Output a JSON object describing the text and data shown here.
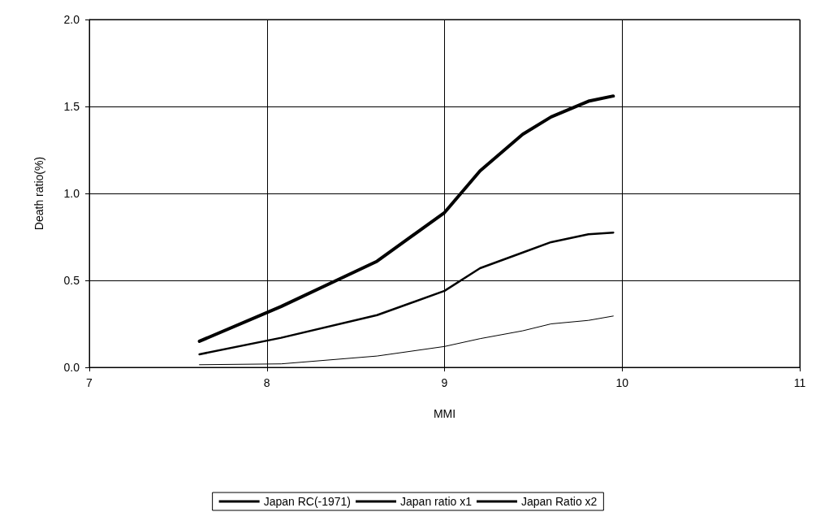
{
  "chart_data": {
    "type": "line",
    "xlabel": "MMI",
    "ylabel": "Death ratio(%)",
    "xlim": [
      7,
      11
    ],
    "xticks": [
      7,
      8,
      9,
      10,
      11
    ],
    "ylim": [
      0,
      2
    ],
    "yticks": [
      {
        "value": 0,
        "label": "0.0"
      },
      {
        "value": 0.5,
        "label": "0.5"
      },
      {
        "value": 1,
        "label": "1.0"
      },
      {
        "value": 1.5,
        "label": "1.5"
      },
      {
        "value": 2,
        "label": "2.0"
      }
    ],
    "grid": true,
    "legend": "bottom",
    "marker": "none",
    "line_style": "solid",
    "x": [
      7.62,
      8.08,
      8.62,
      9.0,
      9.2,
      9.44,
      9.6,
      9.81,
      9.95
    ],
    "series": [
      {
        "name": "Japan RC(-1971)",
        "color": "#000000",
        "values": [
          0.015,
          0.02,
          0.065,
          0.12,
          0.165,
          0.21,
          0.25,
          0.27,
          0.295
        ]
      },
      {
        "name": "Japan ratio x1",
        "color": "#000000",
        "values": [
          0.075,
          0.17,
          0.3,
          0.44,
          0.57,
          0.66,
          0.72,
          0.765,
          0.775
        ]
      },
      {
        "name": "Japan Ratio x2",
        "color": "#000000",
        "values": [
          0.15,
          0.35,
          0.61,
          0.89,
          1.13,
          1.34,
          1.44,
          1.53,
          1.56
        ]
      }
    ]
  }
}
